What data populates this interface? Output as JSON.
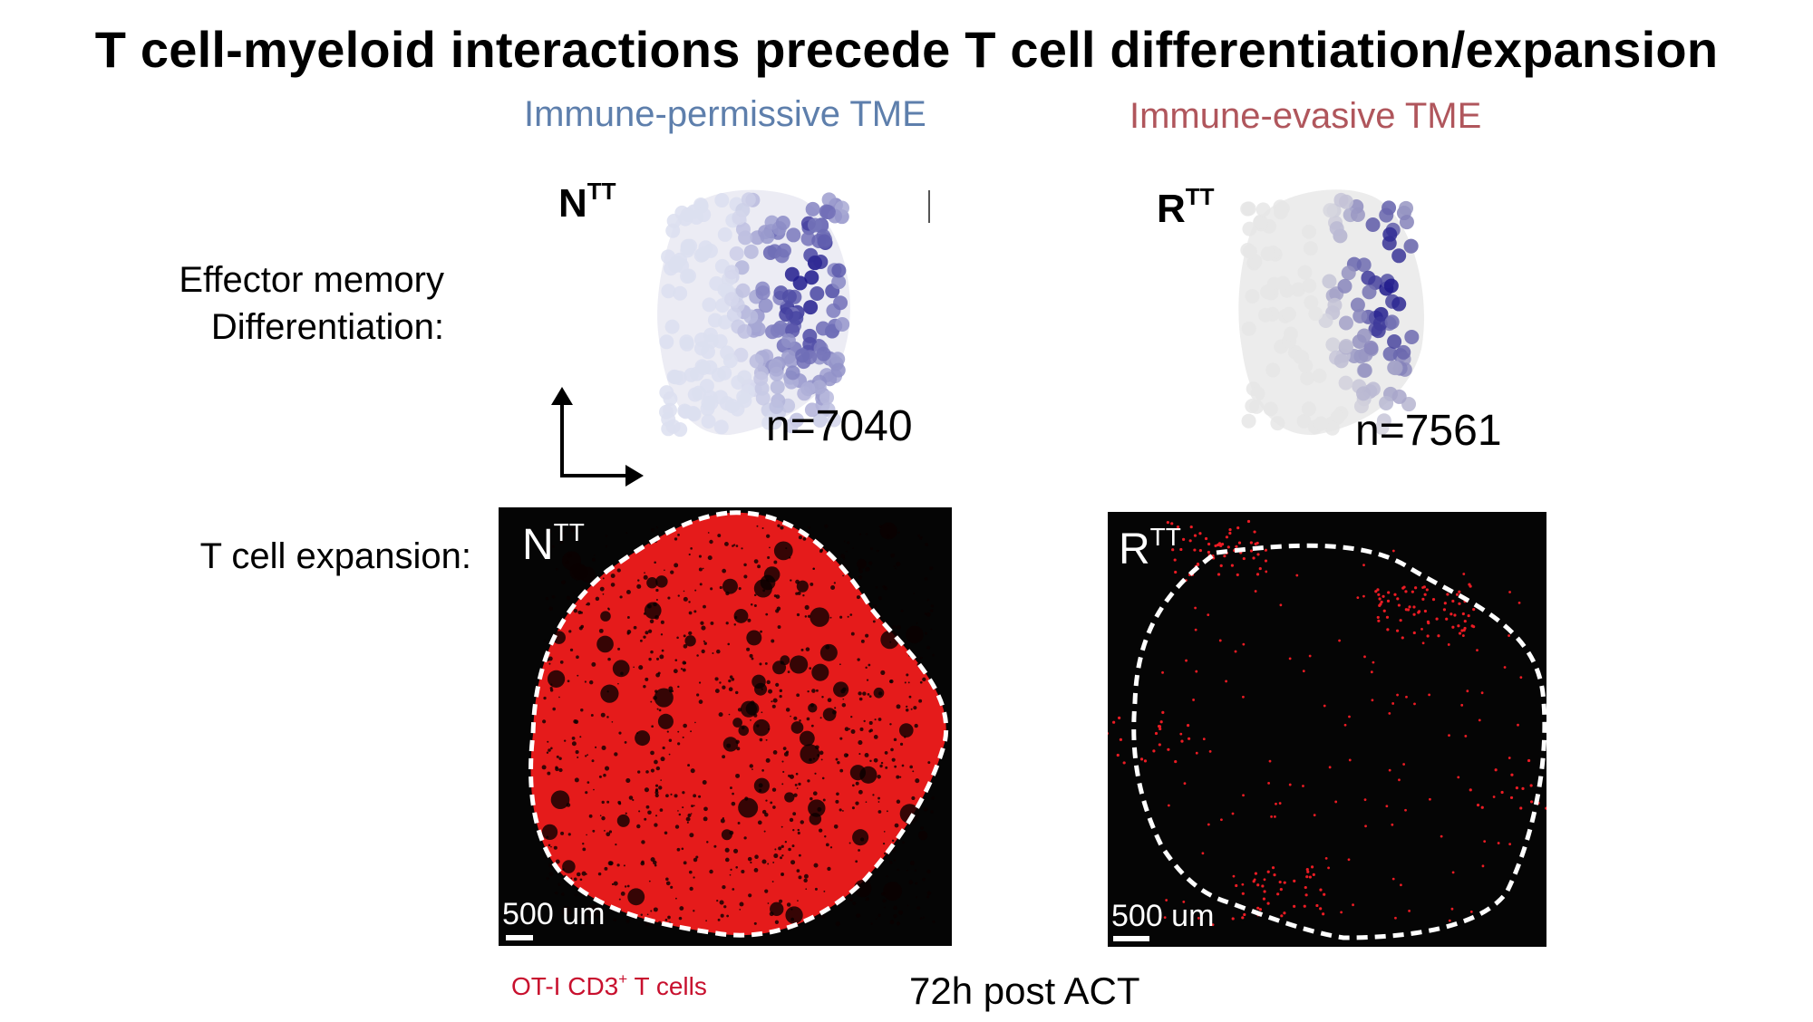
{
  "title": "T cell-myeloid interactions precede T cell differentiation/expansion",
  "conditions": {
    "permissive": "Immune-permissive TME",
    "evasive": "Immune-evasive TME"
  },
  "row_labels": {
    "effector_memory_line1": "Effector memory",
    "effector_memory_line2": "Differentiation:",
    "expansion": "T cell expansion:"
  },
  "umaps": [
    {
      "label_main": "N",
      "label_sup": "TT",
      "n_text": "n=7040",
      "color_high": "#1f1a8c",
      "color_low": "#dcdff0"
    },
    {
      "label_main": "R",
      "label_sup": "TT",
      "n_text": "n=7561",
      "color_high": "#1f1a8c",
      "color_low": "#e6e6e6"
    }
  ],
  "images": [
    {
      "label_main": "N",
      "label_sup": "TT",
      "scale_text": "500 um",
      "cell_color": "#ec1c24"
    },
    {
      "label_main": "R",
      "label_sup": "TT",
      "scale_text": "500 um",
      "cell_color": "#ec1c24"
    }
  ],
  "captions": {
    "cells_main": "OT-I CD3",
    "cells_sup": "+",
    "cells_tail": " T cells",
    "time": "72h post ACT"
  }
}
